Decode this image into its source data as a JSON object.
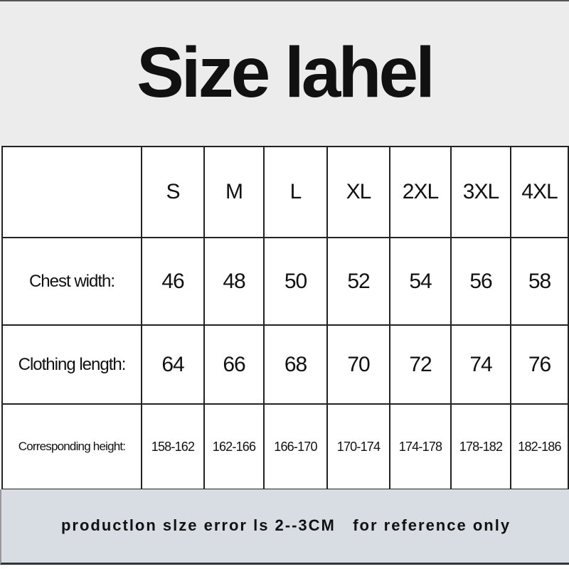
{
  "title": "Size lahel",
  "table": {
    "sizes": [
      "S",
      "M",
      "L",
      "XL",
      "2XL",
      "3XL",
      "4XL"
    ],
    "rows": [
      {
        "label": "Chest width:",
        "values": [
          "46",
          "48",
          "50",
          "52",
          "54",
          "56",
          "58"
        ]
      },
      {
        "label": "Clothing length:",
        "values": [
          "64",
          "66",
          "68",
          "70",
          "72",
          "74",
          "76"
        ]
      },
      {
        "label": "Corresponding height:",
        "values": [
          "158-162",
          "162-166",
          "166-170",
          "170-174",
          "174-178",
          "178-182",
          "182-186"
        ]
      }
    ]
  },
  "footer": "productlon slze error ls 2--3CM   for reference only",
  "colors": {
    "title_bg": "#ececec",
    "footer_bg": "#d8dde4",
    "grid": "#222222"
  }
}
